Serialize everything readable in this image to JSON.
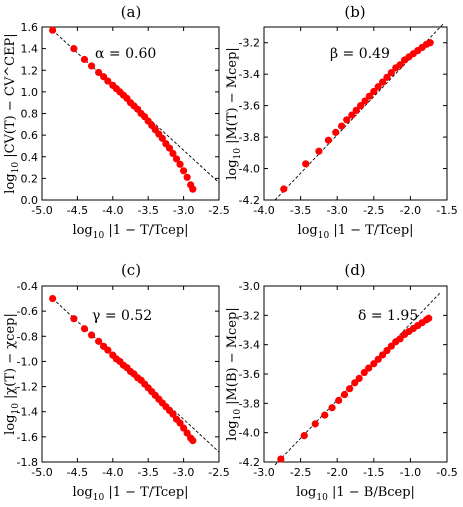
{
  "figure": {
    "marker_color": "#ff0000",
    "fit_line_color": "#000000"
  },
  "chart_data": [
    {
      "type": "scatter",
      "title": "(a)",
      "xlabel": "log10 |1 − T/Tcep|",
      "ylabel": "log10 |CV(T) − CV^CEP|",
      "annotation": "α = 0.60",
      "xlim": [
        -5.0,
        -2.5
      ],
      "ylim": [
        0.0,
        1.6
      ],
      "xticks": [
        "-5.0",
        "-4.5",
        "-4.0",
        "-3.5",
        "-3.0",
        "-2.5"
      ],
      "yticks": [
        "0.0",
        "0.2",
        "0.4",
        "0.6",
        "0.8",
        "1.0",
        "1.2",
        "1.4",
        "1.6"
      ],
      "fit_line": {
        "x": [
          -4.85,
          -2.5
        ],
        "y": [
          1.57,
          0.16
        ]
      },
      "points": {
        "x": [
          -4.85,
          -4.55,
          -4.4,
          -4.3,
          -4.2,
          -4.13,
          -4.07,
          -4.0,
          -3.95,
          -3.9,
          -3.85,
          -3.8,
          -3.75,
          -3.7,
          -3.65,
          -3.6,
          -3.55,
          -3.5,
          -3.45,
          -3.4,
          -3.35,
          -3.3,
          -3.25,
          -3.2,
          -3.15,
          -3.1,
          -3.05,
          -3.0,
          -2.95,
          -2.9,
          -2.87
        ],
        "y": [
          1.57,
          1.4,
          1.3,
          1.24,
          1.18,
          1.14,
          1.1,
          1.06,
          1.03,
          1.0,
          0.97,
          0.94,
          0.9,
          0.87,
          0.84,
          0.8,
          0.77,
          0.73,
          0.69,
          0.65,
          0.61,
          0.57,
          0.52,
          0.48,
          0.43,
          0.38,
          0.33,
          0.27,
          0.21,
          0.14,
          0.1
        ]
      }
    },
    {
      "type": "scatter",
      "title": "(b)",
      "xlabel": "log10 |1 − T/Tcep|",
      "ylabel": "log10 |M(T) − Mcep|",
      "annotation": "β = 0.49",
      "xlim": [
        -4.0,
        -1.5
      ],
      "ylim": [
        -4.2,
        -3.1
      ],
      "xticks": [
        "-4.0",
        "-3.5",
        "-3.0",
        "-2.5",
        "-2.0",
        "-1.5"
      ],
      "yticks": [
        "-4.2",
        "-4.0",
        "-3.8",
        "-3.6",
        "-3.4",
        "-3.2"
      ],
      "fit_line": {
        "x": [
          -3.85,
          -1.55
        ],
        "y": [
          -4.2,
          -3.08
        ]
      },
      "points": {
        "x": [
          -3.73,
          -3.43,
          -3.25,
          -3.12,
          -3.02,
          -2.94,
          -2.87,
          -2.8,
          -2.74,
          -2.68,
          -2.62,
          -2.56,
          -2.5,
          -2.44,
          -2.38,
          -2.32,
          -2.26,
          -2.2,
          -2.14,
          -2.08,
          -2.02,
          -1.96,
          -1.9,
          -1.84,
          -1.78,
          -1.73
        ],
        "y": [
          -4.13,
          -3.97,
          -3.89,
          -3.82,
          -3.77,
          -3.73,
          -3.69,
          -3.66,
          -3.63,
          -3.6,
          -3.57,
          -3.54,
          -3.51,
          -3.48,
          -3.45,
          -3.42,
          -3.39,
          -3.36,
          -3.34,
          -3.31,
          -3.29,
          -3.27,
          -3.25,
          -3.23,
          -3.21,
          -3.2
        ]
      }
    },
    {
      "type": "scatter",
      "title": "(c)",
      "xlabel": "log10 |1 − T/Tcep|",
      "ylabel": "log10 |χ(T) − χcep|",
      "annotation": "γ = 0.52",
      "xlim": [
        -5.0,
        -2.5
      ],
      "ylim": [
        -1.8,
        -0.4
      ],
      "xticks": [
        "-5.0",
        "-4.5",
        "-4.0",
        "-3.5",
        "-3.0",
        "-2.5"
      ],
      "yticks": [
        "-1.8",
        "-1.6",
        "-1.4",
        "-1.2",
        "-1.0",
        "-0.8",
        "-0.6",
        "-0.4"
      ],
      "fit_line": {
        "x": [
          -4.85,
          -2.5
        ],
        "y": [
          -0.5,
          -1.72
        ]
      },
      "points": {
        "x": [
          -4.85,
          -4.55,
          -4.4,
          -4.3,
          -4.2,
          -4.13,
          -4.07,
          -4.0,
          -3.95,
          -3.9,
          -3.85,
          -3.8,
          -3.75,
          -3.7,
          -3.65,
          -3.6,
          -3.55,
          -3.5,
          -3.45,
          -3.4,
          -3.35,
          -3.3,
          -3.25,
          -3.2,
          -3.15,
          -3.1,
          -3.05,
          -3.0,
          -2.95,
          -2.9,
          -2.87
        ],
        "y": [
          -0.5,
          -0.66,
          -0.74,
          -0.79,
          -0.84,
          -0.88,
          -0.91,
          -0.95,
          -0.98,
          -1.0,
          -1.03,
          -1.05,
          -1.08,
          -1.1,
          -1.13,
          -1.15,
          -1.18,
          -1.21,
          -1.24,
          -1.27,
          -1.3,
          -1.33,
          -1.36,
          -1.39,
          -1.42,
          -1.46,
          -1.49,
          -1.53,
          -1.57,
          -1.61,
          -1.63
        ]
      }
    },
    {
      "type": "scatter",
      "title": "(d)",
      "xlabel": "log10 |1 − B/Bcep|",
      "ylabel": "log10 |M(B) − Mcep|",
      "annotation": "δ = 1.95",
      "xlim": [
        -3.0,
        -0.5
      ],
      "ylim": [
        -4.2,
        -3.0
      ],
      "xticks": [
        "-3.0",
        "-2.5",
        "-2.0",
        "-1.5",
        "-1.0",
        "-0.5"
      ],
      "yticks": [
        "-4.2",
        "-4.0",
        "-3.8",
        "-3.6",
        "-3.4",
        "-3.2",
        "-3.0"
      ],
      "fit_line": {
        "x": [
          -2.85,
          -0.6
        ],
        "y": [
          -4.22,
          -3.05
        ]
      },
      "points": {
        "x": [
          -2.77,
          -2.45,
          -2.3,
          -2.17,
          -2.07,
          -1.98,
          -1.9,
          -1.83,
          -1.76,
          -1.7,
          -1.63,
          -1.57,
          -1.5,
          -1.44,
          -1.38,
          -1.32,
          -1.26,
          -1.2,
          -1.14,
          -1.08,
          -1.02,
          -0.96,
          -0.9,
          -0.84,
          -0.78,
          -0.75
        ],
        "y": [
          -4.18,
          -4.02,
          -3.94,
          -3.88,
          -3.83,
          -3.78,
          -3.74,
          -3.7,
          -3.66,
          -3.63,
          -3.59,
          -3.56,
          -3.53,
          -3.5,
          -3.47,
          -3.44,
          -3.41,
          -3.38,
          -3.36,
          -3.33,
          -3.31,
          -3.29,
          -3.27,
          -3.25,
          -3.23,
          -3.22
        ]
      }
    }
  ]
}
